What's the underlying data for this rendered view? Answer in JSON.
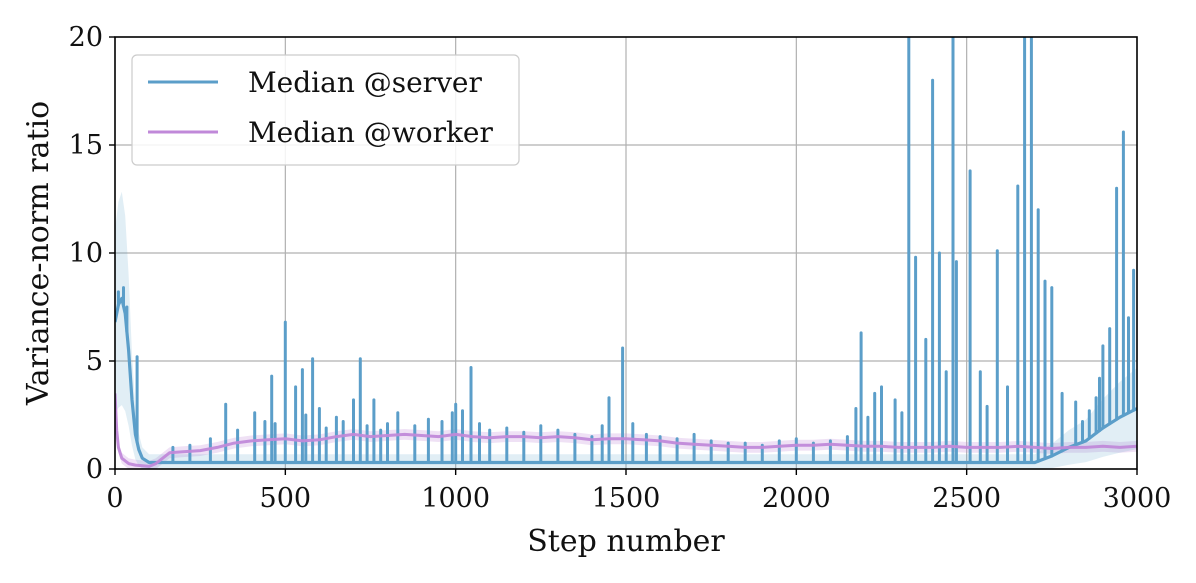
{
  "chart_data": {
    "type": "line",
    "title": "",
    "xlabel": "Step number",
    "ylabel": "Variance-norm ratio",
    "xlim": [
      0,
      3000
    ],
    "ylim": [
      0,
      20
    ],
    "xticks": [
      0,
      500,
      1000,
      1500,
      2000,
      2500,
      3000
    ],
    "yticks": [
      0,
      5,
      10,
      15,
      20
    ],
    "grid": true,
    "legend_position": "top-left",
    "series": [
      {
        "name": "Median @server",
        "color": "#5b9ec9",
        "baseline": [
          [
            0,
            6.8
          ],
          [
            10,
            7.6
          ],
          [
            20,
            7.9
          ],
          [
            30,
            7.2
          ],
          [
            40,
            5.5
          ],
          [
            50,
            3.2
          ],
          [
            60,
            1.6
          ],
          [
            70,
            0.9
          ],
          [
            80,
            0.5
          ],
          [
            100,
            0.3
          ],
          [
            150,
            0.3
          ],
          [
            200,
            0.3
          ],
          [
            400,
            0.3
          ],
          [
            600,
            0.3
          ],
          [
            800,
            0.3
          ],
          [
            1000,
            0.3
          ],
          [
            1200,
            0.3
          ],
          [
            1500,
            0.3
          ],
          [
            1700,
            0.3
          ],
          [
            2000,
            0.3
          ],
          [
            2200,
            0.3
          ],
          [
            2500,
            0.3
          ],
          [
            2700,
            0.3
          ],
          [
            2750,
            0.6
          ],
          [
            2800,
            1.0
          ],
          [
            2850,
            1.3
          ],
          [
            2900,
            1.9
          ],
          [
            2950,
            2.4
          ],
          [
            3000,
            2.8
          ]
        ],
        "spikes": [
          [
            10,
            8.2
          ],
          [
            25,
            8.4
          ],
          [
            35,
            7.5
          ],
          [
            65,
            5.2
          ],
          [
            170,
            1.0
          ],
          [
            220,
            1.1
          ],
          [
            280,
            1.4
          ],
          [
            325,
            3.0
          ],
          [
            360,
            1.8
          ],
          [
            410,
            2.6
          ],
          [
            440,
            2.2
          ],
          [
            460,
            4.3
          ],
          [
            470,
            2.1
          ],
          [
            500,
            6.8
          ],
          [
            530,
            3.8
          ],
          [
            550,
            4.6
          ],
          [
            560,
            2.5
          ],
          [
            580,
            5.1
          ],
          [
            600,
            2.8
          ],
          [
            620,
            1.9
          ],
          [
            650,
            2.4
          ],
          [
            670,
            2.2
          ],
          [
            700,
            3.2
          ],
          [
            720,
            5.1
          ],
          [
            740,
            2.0
          ],
          [
            760,
            3.2
          ],
          [
            780,
            1.8
          ],
          [
            800,
            2.1
          ],
          [
            830,
            2.6
          ],
          [
            880,
            2.0
          ],
          [
            920,
            2.3
          ],
          [
            960,
            2.2
          ],
          [
            990,
            2.6
          ],
          [
            1000,
            3.0
          ],
          [
            1020,
            2.7
          ],
          [
            1045,
            4.7
          ],
          [
            1070,
            2.1
          ],
          [
            1100,
            1.8
          ],
          [
            1150,
            1.9
          ],
          [
            1200,
            1.7
          ],
          [
            1250,
            2.0
          ],
          [
            1300,
            1.8
          ],
          [
            1350,
            1.6
          ],
          [
            1400,
            1.5
          ],
          [
            1430,
            2.0
          ],
          [
            1450,
            3.3
          ],
          [
            1490,
            5.6
          ],
          [
            1520,
            2.1
          ],
          [
            1560,
            1.6
          ],
          [
            1600,
            1.5
          ],
          [
            1650,
            1.4
          ],
          [
            1700,
            1.6
          ],
          [
            1750,
            1.3
          ],
          [
            1800,
            1.2
          ],
          [
            1850,
            1.2
          ],
          [
            1900,
            1.1
          ],
          [
            1950,
            1.3
          ],
          [
            2000,
            1.4
          ],
          [
            2050,
            1.2
          ],
          [
            2100,
            1.3
          ],
          [
            2150,
            1.5
          ],
          [
            2175,
            2.8
          ],
          [
            2190,
            6.3
          ],
          [
            2210,
            2.4
          ],
          [
            2230,
            3.5
          ],
          [
            2250,
            3.8
          ],
          [
            2290,
            3.2
          ],
          [
            2310,
            2.6
          ],
          [
            2330,
            20
          ],
          [
            2350,
            9.8
          ],
          [
            2380,
            6.0
          ],
          [
            2400,
            18.0
          ],
          [
            2420,
            10.0
          ],
          [
            2440,
            4.5
          ],
          [
            2460,
            20
          ],
          [
            2470,
            9.6
          ],
          [
            2510,
            13.8
          ],
          [
            2540,
            4.5
          ],
          [
            2560,
            2.9
          ],
          [
            2590,
            10.1
          ],
          [
            2620,
            3.8
          ],
          [
            2650,
            13.1
          ],
          [
            2670,
            20
          ],
          [
            2690,
            20
          ],
          [
            2710,
            12.0
          ],
          [
            2730,
            8.7
          ],
          [
            2750,
            8.4
          ],
          [
            2780,
            3.5
          ],
          [
            2820,
            3.1
          ],
          [
            2840,
            2.2
          ],
          [
            2860,
            2.7
          ],
          [
            2880,
            3.3
          ],
          [
            2890,
            4.2
          ],
          [
            2900,
            5.7
          ],
          [
            2920,
            6.5
          ],
          [
            2940,
            13.0
          ],
          [
            2960,
            15.6
          ],
          [
            2975,
            7.0
          ],
          [
            2990,
            9.2
          ]
        ]
      },
      {
        "name": "Median @worker",
        "color": "#c089d9",
        "points": [
          [
            0,
            3.5
          ],
          [
            5,
            1.8
          ],
          [
            10,
            1.0
          ],
          [
            20,
            0.5
          ],
          [
            40,
            0.25
          ],
          [
            60,
            0.18
          ],
          [
            80,
            0.15
          ],
          [
            100,
            0.12
          ],
          [
            120,
            0.25
          ],
          [
            140,
            0.5
          ],
          [
            160,
            0.75
          ],
          [
            200,
            0.8
          ],
          [
            250,
            0.85
          ],
          [
            300,
            1.0
          ],
          [
            350,
            1.2
          ],
          [
            400,
            1.3
          ],
          [
            450,
            1.35
          ],
          [
            500,
            1.4
          ],
          [
            550,
            1.3
          ],
          [
            600,
            1.35
          ],
          [
            650,
            1.5
          ],
          [
            700,
            1.6
          ],
          [
            750,
            1.5
          ],
          [
            800,
            1.55
          ],
          [
            850,
            1.6
          ],
          [
            900,
            1.55
          ],
          [
            950,
            1.5
          ],
          [
            1000,
            1.6
          ],
          [
            1050,
            1.5
          ],
          [
            1100,
            1.45
          ],
          [
            1150,
            1.5
          ],
          [
            1200,
            1.5
          ],
          [
            1250,
            1.45
          ],
          [
            1300,
            1.5
          ],
          [
            1350,
            1.45
          ],
          [
            1400,
            1.35
          ],
          [
            1450,
            1.4
          ],
          [
            1500,
            1.4
          ],
          [
            1550,
            1.35
          ],
          [
            1600,
            1.3
          ],
          [
            1650,
            1.2
          ],
          [
            1700,
            1.15
          ],
          [
            1750,
            1.1
          ],
          [
            1800,
            1.05
          ],
          [
            1850,
            1.0
          ],
          [
            1900,
            1.0
          ],
          [
            1950,
            1.05
          ],
          [
            2000,
            1.1
          ],
          [
            2050,
            1.1
          ],
          [
            2100,
            1.15
          ],
          [
            2150,
            1.1
          ],
          [
            2200,
            1.05
          ],
          [
            2250,
            1.05
          ],
          [
            2300,
            1.0
          ],
          [
            2350,
            1.0
          ],
          [
            2400,
            1.0
          ],
          [
            2450,
            1.05
          ],
          [
            2500,
            1.0
          ],
          [
            2550,
            1.0
          ],
          [
            2600,
            1.0
          ],
          [
            2650,
            1.05
          ],
          [
            2700,
            1.0
          ],
          [
            2750,
            0.95
          ],
          [
            2800,
            1.0
          ],
          [
            2850,
            1.0
          ],
          [
            2900,
            1.05
          ],
          [
            2950,
            1.0
          ],
          [
            3000,
            1.05
          ]
        ]
      }
    ]
  }
}
